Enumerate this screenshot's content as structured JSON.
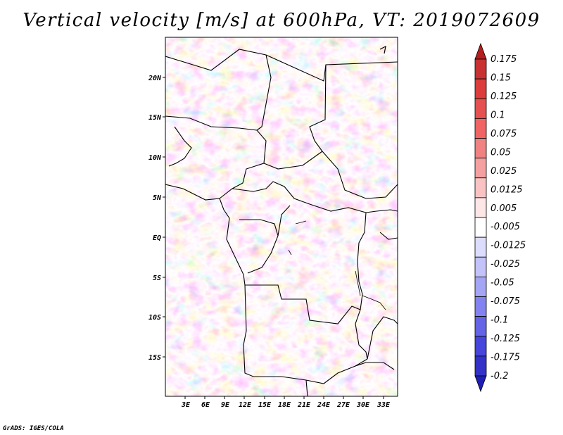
{
  "title": "Vertical velocity [m/s] at 600hPa, VT: 2019072609",
  "credit": "GrADS: IGES/COLA",
  "lat_labels": [
    "20N",
    "15N",
    "10N",
    "5N",
    "EQ",
    "5S",
    "10S",
    "15S"
  ],
  "lon_labels": [
    "3E",
    "6E",
    "9E",
    "12E",
    "15E",
    "18E",
    "21E",
    "24E",
    "27E",
    "30E",
    "33E"
  ],
  "colorbar": {
    "levels": [
      "0.175",
      "0.15",
      "0.125",
      "0.1",
      "0.075",
      "0.05",
      "0.025",
      "0.0125",
      "0.005",
      "-0.005",
      "-0.0125",
      "-0.025",
      "-0.05",
      "-0.075",
      "-0.1",
      "-0.125",
      "-0.175",
      "-0.2"
    ],
    "colors": [
      "#b41e1e",
      "#c83232",
      "#dc3c3c",
      "#e65050",
      "#f06464",
      "#f08282",
      "#f5a0a0",
      "#fac3c3",
      "#fde6e6",
      "#ffffff",
      "#dcdcff",
      "#c3c3fa",
      "#a5a5f5",
      "#8282f0",
      "#6464e6",
      "#4646dc",
      "#3232c8",
      "#1e1eb4"
    ]
  },
  "map": {
    "lon_range": [
      0,
      35
    ],
    "lat_range": [
      -20,
      25
    ],
    "field": "vertical velocity",
    "units": "m/s",
    "pressure_level": "600hPa"
  }
}
